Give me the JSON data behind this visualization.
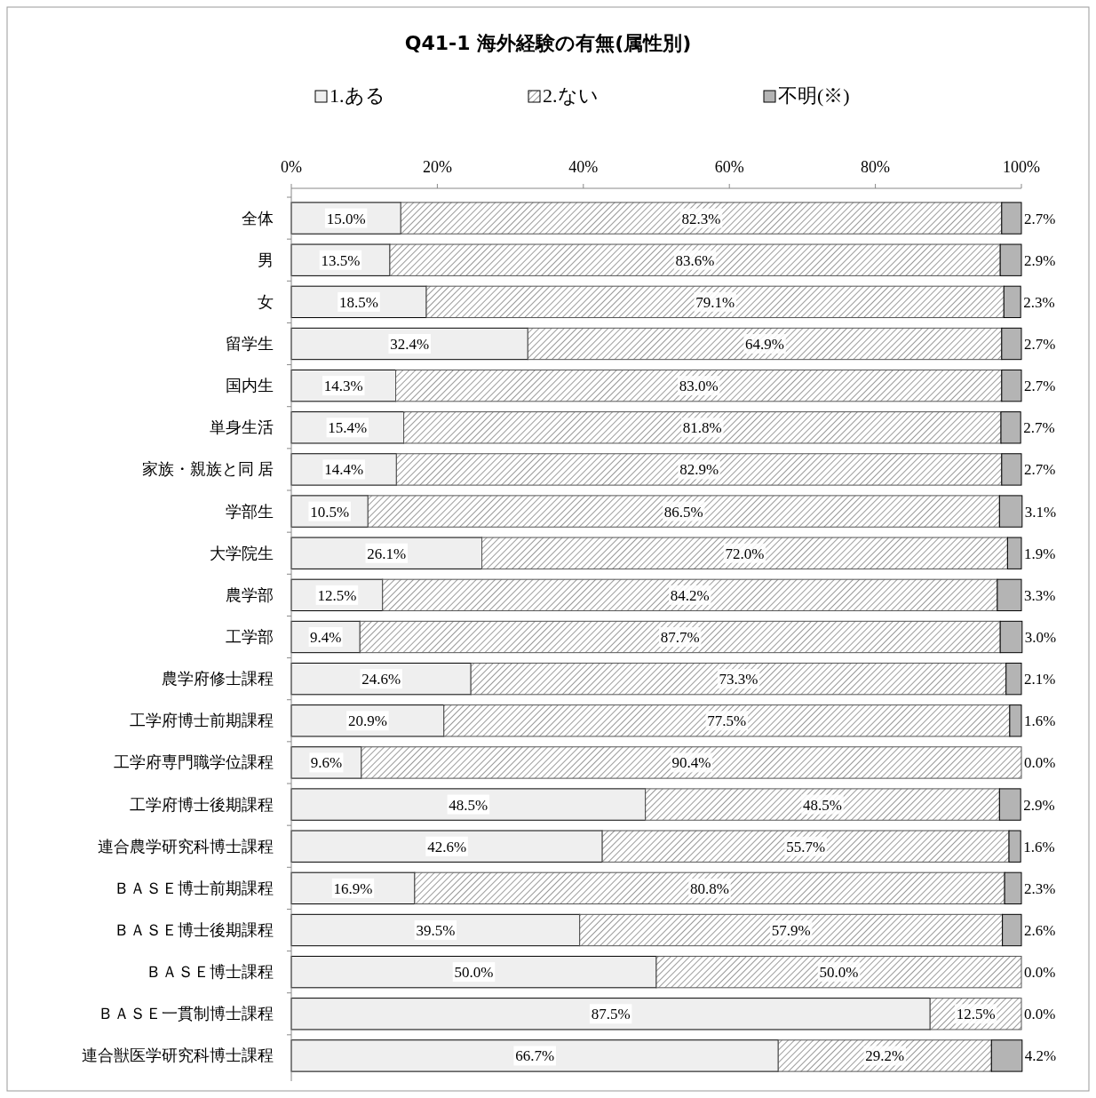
{
  "chart_data": {
    "type": "bar",
    "orientation": "horizontal",
    "stacked": true,
    "title": "Q41-1  海外経験の有無(属性別)",
    "legend": "top",
    "categories": [
      "全体",
      "男",
      "女",
      "留学生",
      "国内生",
      "単身生活",
      "家族・親族と同 居",
      "学部生",
      "大学院生",
      "農学部",
      "工学部",
      "農学府修士課程",
      "工学府博士前期課程",
      "工学府専門職学位課程",
      "工学府博士後期課程",
      "連合農学研究科博士課程",
      "ＢＡＳＥ博士前期課程",
      "ＢＡＳＥ博士後期課程",
      "ＢＡＳＥ博士課程",
      "ＢＡＳＥ一貫制博士課程",
      "連合獣医学研究科博士課程"
    ],
    "xlim": [
      0,
      100
    ],
    "xticks": [
      {
        "value": 0,
        "label": "0%"
      },
      {
        "value": 20,
        "label": "20%"
      },
      {
        "value": 40,
        "label": "40%"
      },
      {
        "value": 60,
        "label": "60%"
      },
      {
        "value": 80,
        "label": "80%"
      },
      {
        "value": 100,
        "label": "100%"
      }
    ],
    "series": [
      {
        "name": "1.ある",
        "color": "#efefef",
        "values": [
          15.0,
          13.5,
          18.5,
          32.4,
          14.3,
          15.4,
          14.4,
          10.5,
          26.1,
          12.5,
          9.4,
          24.6,
          20.9,
          9.6,
          48.5,
          42.6,
          16.9,
          39.5,
          50.0,
          87.5,
          66.7
        ],
        "value_labels": [
          "15.0%",
          "13.5%",
          "18.5%",
          "32.4%",
          "14.3%",
          "15.4%",
          "14.4%",
          "10.5%",
          "26.1%",
          "12.5%",
          "9.4%",
          "24.6%",
          "20.9%",
          "9.6%",
          "48.5%",
          "42.6%",
          "16.9%",
          "39.5%",
          "50.0%",
          "87.5%",
          "66.7%"
        ]
      },
      {
        "name": "2.ない",
        "color": "#555555",
        "values": [
          82.3,
          83.6,
          79.1,
          64.9,
          83.0,
          81.8,
          82.9,
          86.5,
          72.0,
          84.2,
          87.7,
          73.3,
          77.5,
          90.4,
          48.5,
          55.7,
          80.8,
          57.9,
          50.0,
          12.5,
          29.2
        ],
        "value_labels": [
          "82.3%",
          "83.6%",
          "79.1%",
          "64.9%",
          "83.0%",
          "81.8%",
          "82.9%",
          "86.5%",
          "72.0%",
          "84.2%",
          "87.7%",
          "73.3%",
          "77.5%",
          "90.4%",
          "48.5%",
          "55.7%",
          "80.8%",
          "57.9%",
          "50.0%",
          "12.5%",
          "29.2%"
        ]
      },
      {
        "name": "不明(※)",
        "color": "#b4b4b4",
        "values": [
          2.7,
          2.9,
          2.3,
          2.7,
          2.7,
          2.7,
          2.7,
          3.1,
          1.9,
          3.3,
          3.0,
          2.1,
          1.6,
          0.0,
          2.9,
          1.6,
          2.3,
          2.6,
          0.0,
          0.0,
          4.2
        ],
        "value_labels": [
          "2.7%",
          "2.9%",
          "2.3%",
          "2.7%",
          "2.7%",
          "2.7%",
          "2.7%",
          "3.1%",
          "1.9%",
          "3.3%",
          "3.0%",
          "2.1%",
          "1.6%",
          "0.0%",
          "2.9%",
          "1.6%",
          "2.3%",
          "2.6%",
          "0.0%",
          "0.0%",
          "4.2%"
        ]
      }
    ]
  }
}
